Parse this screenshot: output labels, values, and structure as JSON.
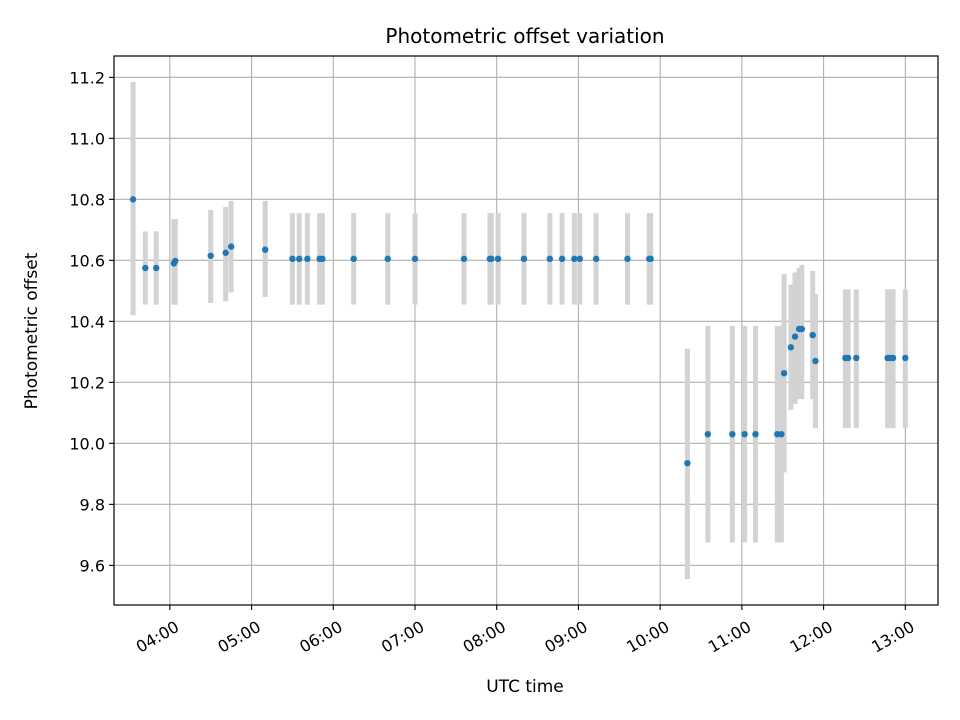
{
  "chart_data": {
    "type": "scatter",
    "title": "Photometric offset variation",
    "xlabel": "UTC time",
    "ylabel": "Photometric offset",
    "grid": true,
    "xlim": [
      "03:19",
      "13:24"
    ],
    "ylim": [
      9.47,
      11.27
    ],
    "x_ticks": [
      "04:00",
      "05:00",
      "06:00",
      "07:00",
      "08:00",
      "09:00",
      "10:00",
      "11:00",
      "12:00",
      "13:00"
    ],
    "y_ticks": [
      9.6,
      9.8,
      10.0,
      10.2,
      10.4,
      10.6,
      10.8,
      11.0,
      11.2
    ],
    "marker_color": "#1f77b4",
    "errorbar_color": "#d3d3d3",
    "series": [
      {
        "x": [
          "03:33",
          "03:42",
          "03:50",
          "04:03",
          "04:04",
          "04:30",
          "04:41",
          "04:45",
          "05:10",
          "05:30",
          "05:35",
          "05:41",
          "05:50",
          "05:52",
          "06:15",
          "06:40",
          "07:00",
          "07:36",
          "07:55",
          "07:56",
          "08:01",
          "08:20",
          "08:39",
          "08:48",
          "08:57",
          "09:01",
          "09:13",
          "09:36",
          "09:52",
          "09:53",
          "10:20",
          "10:35",
          "10:53",
          "11:02",
          "11:10",
          "11:26",
          "11:29",
          "11:31",
          "11:36",
          "11:39",
          "11:42",
          "11:44",
          "11:52",
          "11:54",
          "12:16",
          "12:18",
          "12:24",
          "12:47",
          "12:49",
          "12:51",
          "13:00"
        ],
        "y": [
          10.8,
          10.575,
          10.575,
          10.59,
          10.598,
          10.615,
          10.625,
          10.645,
          10.635,
          10.605,
          10.605,
          10.605,
          10.605,
          10.605,
          10.605,
          10.605,
          10.605,
          10.605,
          10.605,
          10.605,
          10.605,
          10.605,
          10.605,
          10.605,
          10.605,
          10.605,
          10.605,
          10.605,
          10.605,
          10.605,
          9.935,
          10.03,
          10.03,
          10.03,
          10.03,
          10.03,
          10.03,
          10.23,
          10.315,
          10.35,
          10.375,
          10.375,
          10.355,
          10.27,
          10.28,
          10.28,
          10.28,
          10.28,
          10.28,
          10.28,
          10.28
        ],
        "y_low": [
          10.42,
          10.455,
          10.455,
          10.455,
          10.455,
          10.46,
          10.465,
          10.495,
          10.48,
          10.455,
          10.455,
          10.455,
          10.455,
          10.455,
          10.455,
          10.455,
          10.455,
          10.455,
          10.455,
          10.455,
          10.455,
          10.455,
          10.455,
          10.455,
          10.455,
          10.455,
          10.455,
          10.455,
          10.455,
          10.455,
          9.555,
          9.675,
          9.675,
          9.675,
          9.675,
          9.675,
          9.675,
          9.905,
          10.11,
          10.13,
          10.145,
          10.145,
          10.145,
          10.05,
          10.05,
          10.05,
          10.05,
          10.05,
          10.05,
          10.05,
          10.05
        ],
        "y_high": [
          11.185,
          10.695,
          10.695,
          10.735,
          10.735,
          10.765,
          10.775,
          10.795,
          10.795,
          10.755,
          10.755,
          10.755,
          10.755,
          10.755,
          10.755,
          10.755,
          10.755,
          10.755,
          10.755,
          10.755,
          10.755,
          10.755,
          10.755,
          10.755,
          10.755,
          10.755,
          10.755,
          10.755,
          10.755,
          10.755,
          10.31,
          10.385,
          10.385,
          10.385,
          10.385,
          10.385,
          10.385,
          10.555,
          10.52,
          10.56,
          10.575,
          10.585,
          10.565,
          10.49,
          10.505,
          10.505,
          10.505,
          10.505,
          10.505,
          10.505,
          10.505
        ]
      }
    ]
  }
}
